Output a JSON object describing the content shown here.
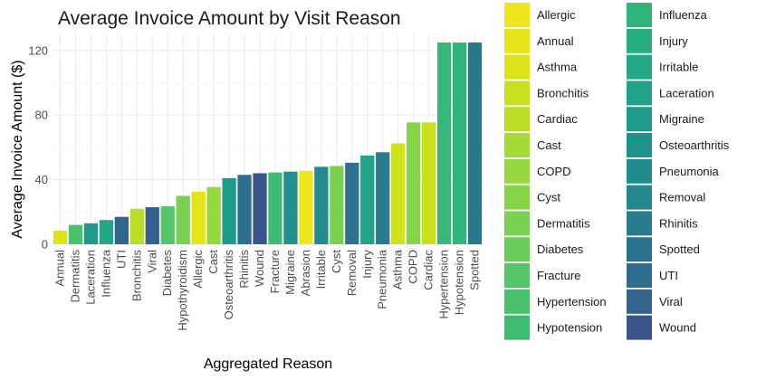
{
  "chart_data": {
    "type": "bar",
    "title": "Average Invoice Amount by Visit Reason",
    "xlabel": "Aggregated Reason",
    "ylabel": "Average Invoice Amount ($)",
    "ylim": [
      0,
      130
    ],
    "yticks": [
      0,
      40,
      80,
      120
    ],
    "grid": true,
    "legend_placement": "right",
    "categories": [
      "Annual",
      "Dermatitis",
      "Laceration",
      "Influenza",
      "UTI",
      "Bronchitis",
      "Viral",
      "Diabetes",
      "Hypothyroidism",
      "Allergic",
      "Cast",
      "Osteoarthritis",
      "Rhinitis",
      "Wound",
      "Fracture",
      "Migraine",
      "Abrasion",
      "Irritable",
      "Cyst",
      "Removal",
      "Injury",
      "Pneumonia",
      "Asthma",
      "COPD",
      "Cardiac",
      "Hypertension",
      "Hypotension",
      "Spotted"
    ],
    "values": [
      8.5,
      12,
      13,
      15,
      17,
      22,
      23,
      23.5,
      30,
      32.5,
      35.5,
      41,
      43,
      44,
      44.5,
      45,
      45.5,
      48,
      48.5,
      50.5,
      55,
      57,
      62.5,
      75.5,
      75.5,
      125,
      125,
      125
    ],
    "bar_colors": [
      "#DCE319",
      "#4AC16D",
      "#1F998A",
      "#22A884",
      "#32648E",
      "#BADE28",
      "#355F8D",
      "#54C568",
      "#7AD151",
      "#E4E419",
      "#95D840",
      "#1E9C89",
      "#2E6F8E",
      "#3A548C",
      "#3FBC73",
      "#21908D",
      "#EEE51C",
      "#238A8D",
      "#7AD151",
      "#2D718E",
      "#20A386",
      "#297B8E",
      "#D2E21B",
      "#86D549",
      "#C8E020",
      "#37B878",
      "#31B57B",
      "#2A788E"
    ],
    "legend": [
      {
        "label": "Allergic",
        "color": "#EEE51C"
      },
      {
        "label": "Annual",
        "color": "#E4E419"
      },
      {
        "label": "Asthma",
        "color": "#DCE319"
      },
      {
        "label": "Bronchitis",
        "color": "#C8E020"
      },
      {
        "label": "Cardiac",
        "color": "#BADE28"
      },
      {
        "label": "Cast",
        "color": "#A5DB36"
      },
      {
        "label": "COPD",
        "color": "#95D840"
      },
      {
        "label": "Cyst",
        "color": "#86D549"
      },
      {
        "label": "Dermatitis",
        "color": "#7AD151"
      },
      {
        "label": "Diabetes",
        "color": "#6ACD5B"
      },
      {
        "label": "Fracture",
        "color": "#54C568"
      },
      {
        "label": "Hypertension",
        "color": "#4AC16D"
      },
      {
        "label": "Hypotension",
        "color": "#3FBC73"
      },
      {
        "label": "Influenza",
        "color": "#2FB47C"
      },
      {
        "label": "Injury",
        "color": "#27AD81"
      },
      {
        "label": "Irritable",
        "color": "#22A884"
      },
      {
        "label": "Laceration",
        "color": "#1FA187"
      },
      {
        "label": "Migraine",
        "color": "#1F998A"
      },
      {
        "label": "Osteoarthritis",
        "color": "#20928C"
      },
      {
        "label": "Pneumonia",
        "color": "#218A8D"
      },
      {
        "label": "Removal",
        "color": "#24868E"
      },
      {
        "label": "Rhinitis",
        "color": "#287C8E"
      },
      {
        "label": "Spotted",
        "color": "#2C738E"
      },
      {
        "label": "UTI",
        "color": "#2F6C8E"
      },
      {
        "label": "Viral",
        "color": "#33638D"
      },
      {
        "label": "Wound",
        "color": "#39568C"
      }
    ]
  }
}
